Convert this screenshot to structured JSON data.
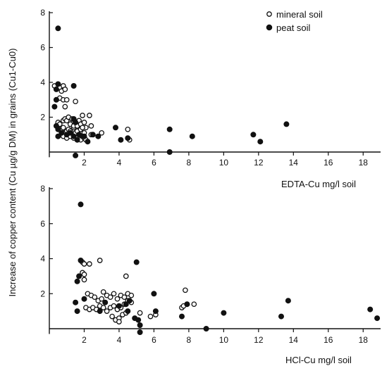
{
  "chart_data": [
    {
      "type": "scatter",
      "xlabel": "EDTA-Cu mg/l soil",
      "ylabel": "Increase of copper content (Cu µg/g DM) in grains (Cu1-Cu0)",
      "xlim": [
        0,
        19
      ],
      "ylim": [
        -0.3,
        8
      ],
      "xticks": [
        2,
        4,
        6,
        8,
        10,
        12,
        14,
        16,
        18
      ],
      "yticks": [
        2,
        4,
        6,
        8
      ],
      "legend_position": "top-right",
      "series": [
        {
          "name": "mineral soil",
          "marker": "open-circle",
          "points": [
            [
              0.3,
              3.8
            ],
            [
              0.5,
              3.9
            ],
            [
              0.6,
              3.7
            ],
            [
              0.7,
              3.5
            ],
            [
              0.8,
              3.8
            ],
            [
              0.9,
              3.6
            ],
            [
              0.6,
              3.1
            ],
            [
              0.8,
              3.0
            ],
            [
              1.0,
              3.0
            ],
            [
              0.9,
              2.6
            ],
            [
              0.5,
              1.7
            ],
            [
              0.6,
              1.6
            ],
            [
              0.8,
              1.8
            ],
            [
              0.9,
              1.9
            ],
            [
              1.0,
              1.8
            ],
            [
              1.1,
              2.0
            ],
            [
              1.3,
              1.9
            ],
            [
              1.5,
              1.7
            ],
            [
              1.7,
              1.8
            ],
            [
              1.9,
              2.1
            ],
            [
              2.3,
              2.1
            ],
            [
              0.6,
              1.3
            ],
            [
              0.7,
              1.2
            ],
            [
              0.8,
              1.4
            ],
            [
              0.9,
              1.1
            ],
            [
              1.0,
              1.2
            ],
            [
              1.1,
              1.3
            ],
            [
              1.2,
              1.2
            ],
            [
              1.3,
              1.0
            ],
            [
              1.4,
              1.4
            ],
            [
              1.5,
              1.1
            ],
            [
              1.6,
              1.2
            ],
            [
              1.7,
              1.0
            ],
            [
              1.8,
              1.3
            ],
            [
              2.0,
              1.1
            ],
            [
              2.1,
              1.4
            ],
            [
              1.2,
              1.6
            ],
            [
              1.4,
              1.5
            ],
            [
              1.6,
              1.5
            ],
            [
              1.8,
              1.6
            ],
            [
              2.0,
              1.7
            ],
            [
              0.8,
              0.9
            ],
            [
              1.0,
              0.8
            ],
            [
              1.2,
              0.9
            ],
            [
              1.4,
              0.8
            ],
            [
              1.6,
              0.7
            ],
            [
              1.8,
              0.7
            ],
            [
              2.0,
              0.8
            ],
            [
              2.1,
              0.7
            ],
            [
              2.4,
              1.0
            ],
            [
              1.5,
              2.9
            ],
            [
              2.4,
              1.5
            ],
            [
              3.0,
              1.1
            ],
            [
              4.5,
              1.3
            ],
            [
              4.6,
              0.7
            ],
            [
              1.9,
              1.4
            ]
          ]
        },
        {
          "name": "peat soil",
          "marker": "filled-circle",
          "points": [
            [
              0.5,
              7.1
            ],
            [
              0.5,
              3.9
            ],
            [
              0.4,
              3.6
            ],
            [
              1.4,
              3.8
            ],
            [
              0.4,
              3.0
            ],
            [
              0.3,
              2.6
            ],
            [
              0.4,
              1.5
            ],
            [
              0.5,
              1.3
            ],
            [
              0.7,
              1.1
            ],
            [
              1.0,
              1.0
            ],
            [
              1.2,
              1.1
            ],
            [
              0.5,
              0.9
            ],
            [
              1.4,
              1.9
            ],
            [
              1.5,
              1.7
            ],
            [
              1.7,
              1.0
            ],
            [
              1.4,
              0.9
            ],
            [
              1.6,
              0.7
            ],
            [
              1.9,
              0.9
            ],
            [
              2.0,
              0.9
            ],
            [
              2.2,
              0.6
            ],
            [
              2.5,
              1.0
            ],
            [
              2.8,
              0.9
            ],
            [
              3.8,
              1.4
            ],
            [
              4.1,
              0.7
            ],
            [
              4.5,
              0.8
            ],
            [
              1.5,
              -0.2
            ],
            [
              6.9,
              1.3
            ],
            [
              6.9,
              0.0
            ],
            [
              8.2,
              0.9
            ],
            [
              11.7,
              1.0
            ],
            [
              12.1,
              0.6
            ],
            [
              13.6,
              1.6
            ]
          ]
        }
      ]
    },
    {
      "type": "scatter",
      "xlabel": "HCl-Cu mg/l soil",
      "xlim": [
        0,
        19
      ],
      "ylim": [
        -0.3,
        8
      ],
      "xticks": [
        2,
        4,
        6,
        8,
        10,
        12,
        14,
        16,
        18
      ],
      "yticks": [
        2,
        4,
        6,
        8
      ],
      "series": [
        {
          "name": "mineral soil",
          "marker": "open-circle",
          "points": [
            [
              1.9,
              3.8
            ],
            [
              2.0,
              3.7
            ],
            [
              2.3,
              3.7
            ],
            [
              2.9,
              3.9
            ],
            [
              1.9,
              3.2
            ],
            [
              2.0,
              3.1
            ],
            [
              2.0,
              2.8
            ],
            [
              4.4,
              3.0
            ],
            [
              2.2,
              2.0
            ],
            [
              2.4,
              1.9
            ],
            [
              2.6,
              1.8
            ],
            [
              2.8,
              1.6
            ],
            [
              3.0,
              1.7
            ],
            [
              3.1,
              2.1
            ],
            [
              3.3,
              1.9
            ],
            [
              3.5,
              1.8
            ],
            [
              3.7,
              2.0
            ],
            [
              3.9,
              1.7
            ],
            [
              4.1,
              1.9
            ],
            [
              4.3,
              1.8
            ],
            [
              4.5,
              2.0
            ],
            [
              4.7,
              1.9
            ],
            [
              2.1,
              1.2
            ],
            [
              2.3,
              1.1
            ],
            [
              2.5,
              1.2
            ],
            [
              2.7,
              1.1
            ],
            [
              2.9,
              1.3
            ],
            [
              3.1,
              1.2
            ],
            [
              3.3,
              1.0
            ],
            [
              3.5,
              1.2
            ],
            [
              3.7,
              1.3
            ],
            [
              3.9,
              1.1
            ],
            [
              4.1,
              1.2
            ],
            [
              4.3,
              1.4
            ],
            [
              4.5,
              1.6
            ],
            [
              4.7,
              1.5
            ],
            [
              3.6,
              0.7
            ],
            [
              3.8,
              0.5
            ],
            [
              4.0,
              0.6
            ],
            [
              4.2,
              0.8
            ],
            [
              4.4,
              0.9
            ],
            [
              4.0,
              0.4
            ],
            [
              5.2,
              0.9
            ],
            [
              5.8,
              0.7
            ],
            [
              6.1,
              0.8
            ],
            [
              7.8,
              2.2
            ],
            [
              7.6,
              1.2
            ],
            [
              7.9,
              1.4
            ],
            [
              8.3,
              1.4
            ],
            [
              7.7,
              1.3
            ]
          ]
        },
        {
          "name": "peat soil",
          "marker": "filled-circle",
          "points": [
            [
              1.8,
              7.1
            ],
            [
              1.8,
              3.9
            ],
            [
              1.7,
              3.0
            ],
            [
              1.6,
              2.7
            ],
            [
              2.0,
              1.7
            ],
            [
              1.5,
              1.5
            ],
            [
              1.6,
              1.0
            ],
            [
              2.9,
              1.0
            ],
            [
              3.2,
              1.5
            ],
            [
              4.0,
              1.3
            ],
            [
              4.4,
              1.4
            ],
            [
              4.5,
              1.0
            ],
            [
              4.6,
              1.6
            ],
            [
              4.9,
              0.6
            ],
            [
              5.0,
              3.8
            ],
            [
              5.1,
              0.5
            ],
            [
              5.2,
              0.2
            ],
            [
              5.2,
              -0.2
            ],
            [
              6.0,
              2.0
            ],
            [
              6.1,
              1.0
            ],
            [
              7.6,
              0.7
            ],
            [
              7.9,
              1.4
            ],
            [
              9.0,
              0.0
            ],
            [
              10.0,
              0.9
            ],
            [
              13.3,
              0.7
            ],
            [
              13.7,
              1.6
            ],
            [
              18.4,
              1.1
            ],
            [
              18.8,
              0.6
            ]
          ]
        }
      ]
    }
  ]
}
